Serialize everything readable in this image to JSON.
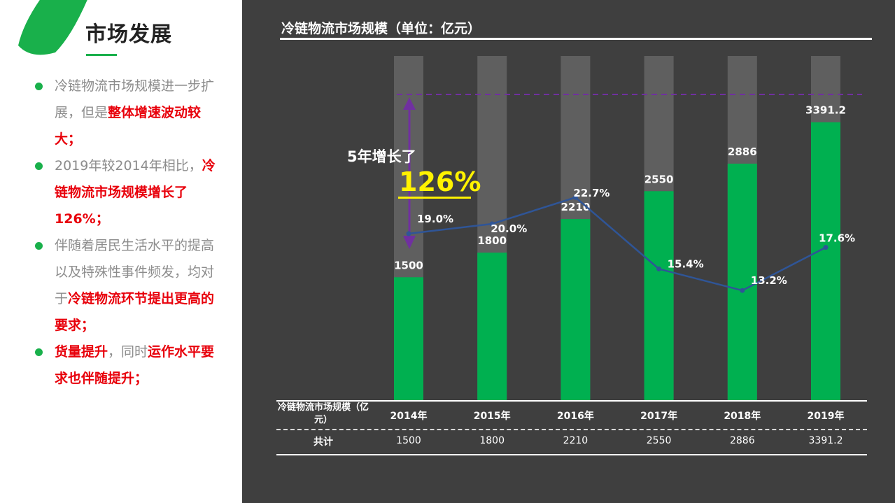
{
  "left": {
    "title": "市场发展",
    "bullets": [
      [
        {
          "t": "冷链物流市场规模进一步扩展，但是",
          "h": false
        },
        {
          "t": "整体增速波动较大；",
          "h": true
        }
      ],
      [
        {
          "t": "2019年较2014年相比，",
          "h": false
        },
        {
          "t": "冷链物流市场规模增长了126%；",
          "h": true
        }
      ],
      [
        {
          "t": "伴随着居民生活水平的提高以及特殊性事件频发，均对于",
          "h": false
        },
        {
          "t": "冷链物流环节提出更高的要求；",
          "h": true
        }
      ],
      [
        {
          "t": "货量提升",
          "h": true
        },
        {
          "t": "，同时",
          "h": false
        },
        {
          "t": "运作水平要求也伴随提升；",
          "h": true
        }
      ]
    ]
  },
  "chart": {
    "title": "冷链物流市场规模（单位：亿元）",
    "growth_text": "5年增长了",
    "growth_pct": "126%"
  },
  "table": {
    "row_header": "冷链物流市场规模（亿元）",
    "row_total": "共计"
  },
  "colors": {
    "bar": "#00b050",
    "bar_bg": "#5f5f5f",
    "line": "#2f5597",
    "dashed": "#7030a0",
    "highlight": "#e8000b",
    "accent": "#19b04b",
    "growth_pct": "#fff200"
  },
  "chart_data": {
    "type": "bar",
    "categories": [
      "2014年",
      "2015年",
      "2016年",
      "2017年",
      "2018年",
      "2019年"
    ],
    "series": [
      {
        "values": [
          1500,
          1800,
          2210,
          2550,
          2886,
          3391.2
        ],
        "labels": [
          "1500",
          "1800",
          "2210",
          "2550",
          "2886",
          "3391.2"
        ]
      },
      {
        "values": [
          19.0,
          20.0,
          22.7,
          15.4,
          13.2,
          17.6
        ],
        "labels": [
          "19.0%",
          "20.0%",
          "22.7%",
          "15.4%",
          "13.2%",
          "17.6%"
        ]
      }
    ],
    "ylim": [
      0,
      4200
    ],
    "table_totals": [
      "1500",
      "1800",
      "2210",
      "2550",
      "2886",
      "3391.2"
    ]
  }
}
